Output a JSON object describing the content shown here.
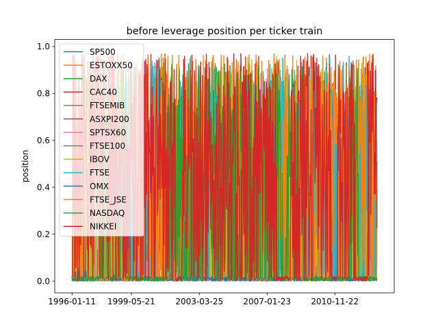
{
  "chart_data": {
    "type": "line",
    "title": "before leverage position per ticker train",
    "xlabel": "",
    "ylabel": "position",
    "x_range": [
      "1996-01-11",
      "2013-04-10"
    ],
    "ylim": [
      -0.05,
      1.03
    ],
    "x_ticks": [
      "1996-01-11",
      "1999-05-21",
      "2003-03-25",
      "2007-01-23",
      "2010-11-22"
    ],
    "y_ticks": [
      "0.0",
      "0.2",
      "0.4",
      "0.6",
      "0.8",
      "1.0"
    ],
    "grid": false,
    "legend_position": "upper-left",
    "series": [
      {
        "name": "SP500",
        "color": "#1f77b4",
        "peak": 0.05,
        "activity": 0.15,
        "seed": 11
      },
      {
        "name": "ESTOXX50",
        "color": "#ff7f0e",
        "peak": 0.97,
        "activity": 0.85,
        "seed": 23
      },
      {
        "name": "DAX",
        "color": "#2ca02c",
        "peak": 0.93,
        "activity": 0.75,
        "seed": 37
      },
      {
        "name": "CAC40",
        "color": "#d62728",
        "peak": 0.97,
        "activity": 0.8,
        "seed": 41
      },
      {
        "name": "FTSEMIB",
        "color": "#9467bd",
        "peak": 0.6,
        "activity": 0.55,
        "seed": 53
      },
      {
        "name": "ASXPI200",
        "color": "#8c564b",
        "peak": 0.6,
        "activity": 0.55,
        "seed": 67
      },
      {
        "name": "SPTSX60",
        "color": "#e377c2",
        "peak": 0.93,
        "activity": 0.6,
        "seed": 71
      },
      {
        "name": "FTSE100",
        "color": "#7f7f7f",
        "peak": 0.45,
        "activity": 0.5,
        "seed": 83
      },
      {
        "name": "IBOV",
        "color": "#bcbd22",
        "peak": 0.96,
        "activity": 0.7,
        "seed": 97
      },
      {
        "name": "FTSE",
        "color": "#17becf",
        "peak": 0.96,
        "activity": 0.75,
        "seed": 101
      },
      {
        "name": "OMX",
        "color": "#1f77b4",
        "peak": 0.05,
        "activity": 0.15,
        "seed": 113
      },
      {
        "name": "FTSE_JSE",
        "color": "#ff7f0e",
        "peak": 0.97,
        "activity": 0.8,
        "seed": 127
      },
      {
        "name": "NASDAQ",
        "color": "#2ca02c",
        "peak": 0.93,
        "activity": 0.8,
        "seed": 131
      },
      {
        "name": "NIKKEI",
        "color": "#d62728",
        "peak": 0.97,
        "activity": 0.85,
        "seed": 139
      }
    ]
  }
}
